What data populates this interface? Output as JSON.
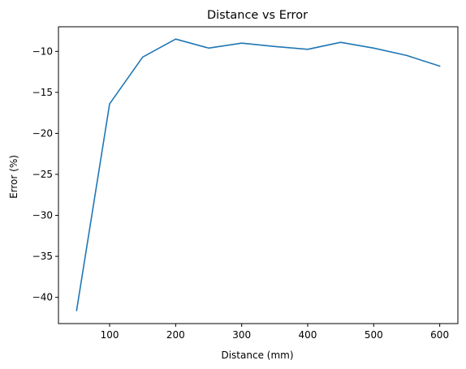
{
  "chart_data": {
    "type": "line",
    "title": "Distance vs Error",
    "xlabel": "Distance (mm)",
    "ylabel": "Error (%)",
    "x": [
      50,
      100,
      150,
      200,
      250,
      300,
      350,
      400,
      450,
      500,
      550,
      600
    ],
    "series": [
      {
        "values": [
          -41.6,
          -16.4,
          -10.7,
          -8.5,
          -9.6,
          -9.0,
          -9.4,
          -9.75,
          -8.9,
          -9.6,
          -10.5,
          -11.8
        ],
        "color": "#1f77b4"
      }
    ],
    "xlim": [
      22.5,
      627.5
    ],
    "ylim": [
      -43.2,
      -7.0
    ],
    "xticks": [
      100,
      200,
      300,
      400,
      500,
      600
    ],
    "yticks": [
      -40,
      -35,
      -30,
      -25,
      -20,
      -15,
      -10
    ],
    "xtick_labels": [
      "100",
      "200",
      "300",
      "400",
      "500",
      "600"
    ],
    "ytick_labels": [
      "−40",
      "−35",
      "−30",
      "−25",
      "−20",
      "−15",
      "−10"
    ],
    "grid": false,
    "legend": false
  }
}
